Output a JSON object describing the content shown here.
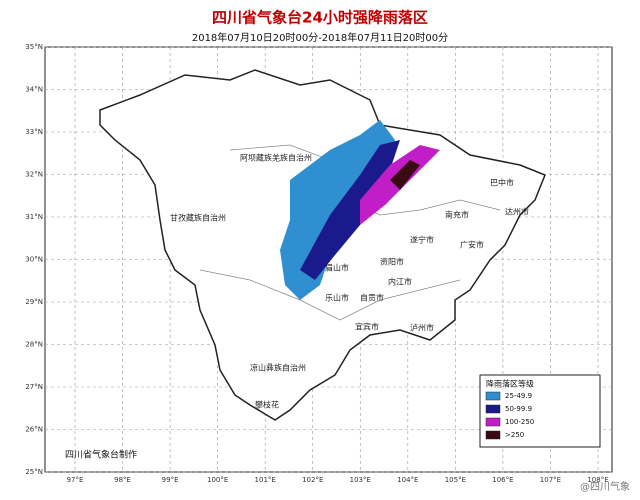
{
  "header": {
    "title": "四川省气象台24小时强降雨落区",
    "subtitle": "2018年07月10日20时00分-2018年07月11日20时00分"
  },
  "map": {
    "lat_ticks": [
      {
        "value": 25,
        "label": "25°N"
      },
      {
        "value": 26,
        "label": "26°N"
      },
      {
        "value": 27,
        "label": "27°N"
      },
      {
        "value": 28,
        "label": "28°N"
      },
      {
        "value": 29,
        "label": "29°N"
      },
      {
        "value": 30,
        "label": "30°N"
      },
      {
        "value": 31,
        "label": "31°N"
      },
      {
        "value": 32,
        "label": "32°N"
      },
      {
        "value": 33,
        "label": "33°N"
      },
      {
        "value": 34,
        "label": "34°N"
      },
      {
        "value": 35,
        "label": "35°N"
      }
    ],
    "lon_ticks": [
      {
        "value": 97,
        "label": "97°E"
      },
      {
        "value": 98,
        "label": "98°E"
      },
      {
        "value": 99,
        "label": "99°E"
      },
      {
        "value": 100,
        "label": "100°E"
      },
      {
        "value": 101,
        "label": "101°E"
      },
      {
        "value": 102,
        "label": "102°E"
      },
      {
        "value": 103,
        "label": "103°E"
      },
      {
        "value": 104,
        "label": "104°E"
      },
      {
        "value": 105,
        "label": "105°E"
      },
      {
        "value": 106,
        "label": "106°E"
      },
      {
        "value": 107,
        "label": "107°E"
      },
      {
        "value": 108,
        "label": "108°E"
      }
    ],
    "places": [
      "阿坝藏族羌族自治州",
      "甘孜藏族自治州",
      "凉山彝族自治州",
      "攀枝花",
      "巴中市",
      "南充市",
      "达州市",
      "遂宁市",
      "广安市",
      "资阳市",
      "内江市",
      "自贡市",
      "乐山市",
      "宜宾市",
      "泸州市",
      "眉山市"
    ]
  },
  "legend": {
    "title": "降雨落区等级",
    "items": [
      {
        "label": "25-49.9",
        "color": "#2f8fd0"
      },
      {
        "label": "50-99.9",
        "color": "#1a1a8c"
      },
      {
        "label": "100-250",
        "color": "#c21ec8"
      },
      {
        "label": ">250",
        "color": "#3a0a14"
      }
    ]
  },
  "footer": {
    "credit": "四川省气象台制作",
    "watermark": "@四川气象"
  }
}
